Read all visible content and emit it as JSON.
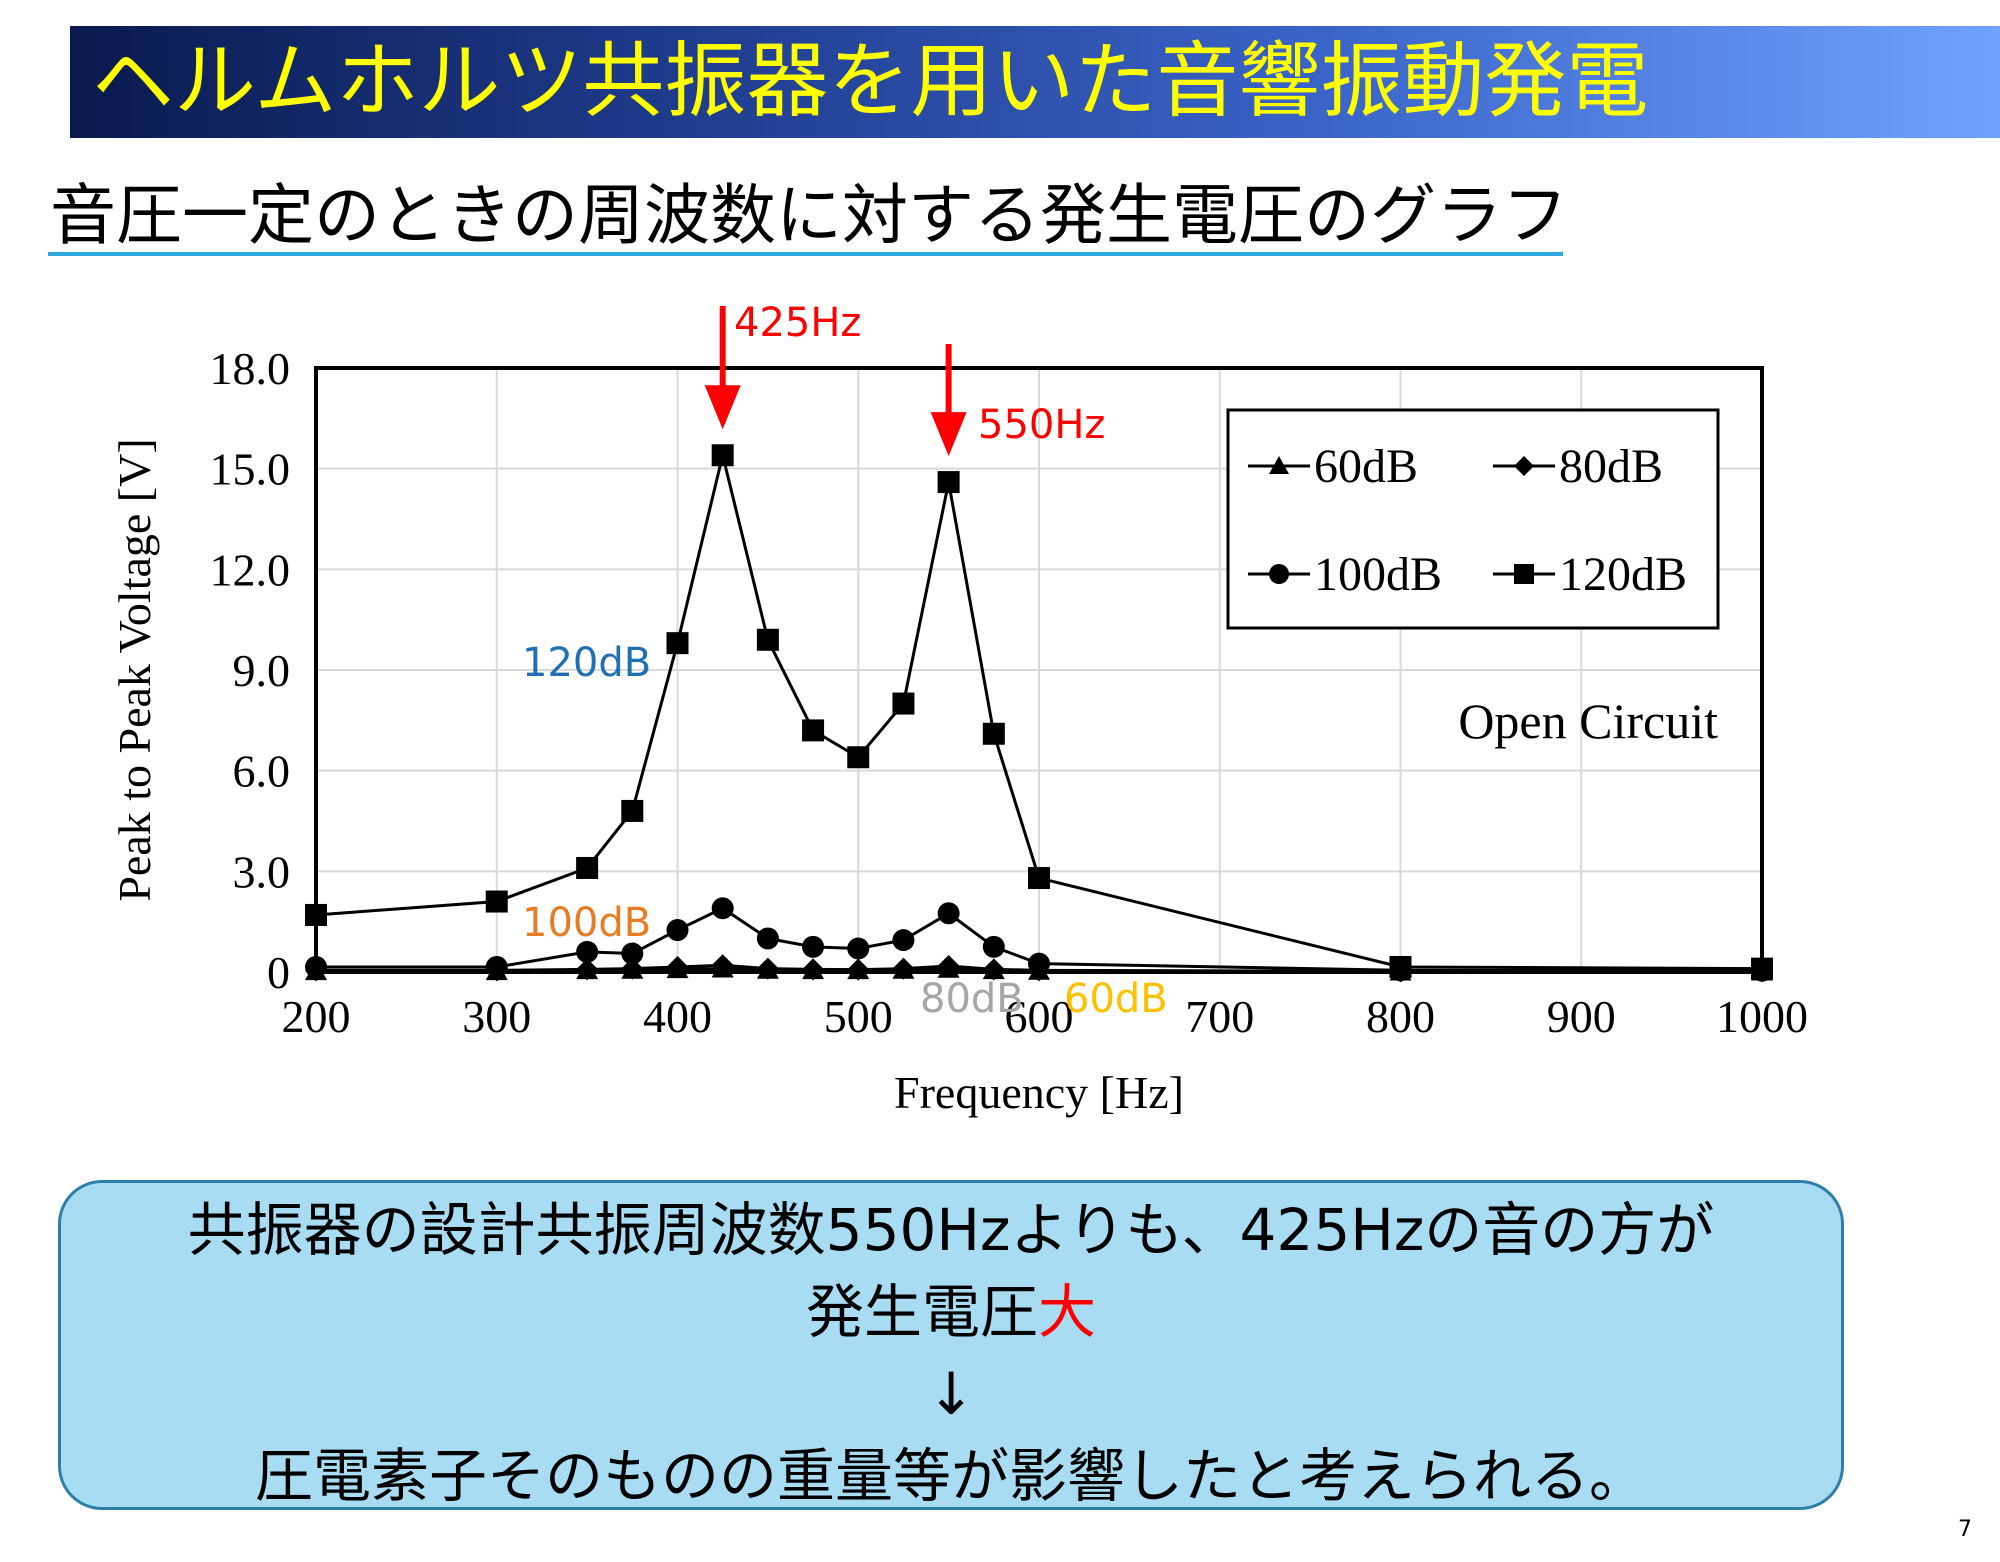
{
  "slide": {
    "title": "ヘルムホルツ共振器を用いた音響振動発電",
    "subtitle": "音圧一定のときの周波数に対する発生電圧のグラフ",
    "page_number": "7",
    "accent_color": "#ffff00",
    "title_bar_colors": [
      "#0a1a4e",
      "#6fa3ff"
    ]
  },
  "summary": {
    "line1": "共振器の設計共振周波数550Hzよりも、425Hzの音の方が",
    "line2_normal": "発生電圧",
    "line2_emph": "大",
    "arrow": "↓",
    "line3": "圧電素子そのものの重量等が影響したと考えられる。",
    "emph_color": "#ff0000",
    "box_color": "#a7dcf2"
  },
  "chart_data": {
    "type": "line",
    "xlabel": "Frequency [Hz]",
    "ylabel": "Peak to Peak Voltage [V]",
    "xlim": [
      200,
      1000
    ],
    "ylim": [
      0,
      18
    ],
    "xticks": [
      200,
      300,
      400,
      500,
      600,
      700,
      800,
      900,
      1000
    ],
    "xtick_labels": [
      "200",
      "300",
      "400",
      "500",
      "600",
      "700",
      "800",
      "900",
      "1000"
    ],
    "yticks": [
      0,
      3,
      6,
      9,
      12,
      15,
      18
    ],
    "ytick_labels": [
      "0",
      "3.0",
      "6.0",
      "9.0",
      "12.0",
      "15.0",
      "18.0"
    ],
    "grid": true,
    "legend_position": "top-right",
    "text_annotation": "Open Circuit",
    "series": [
      {
        "name": "60dB",
        "marker": "triangle",
        "x": [
          200,
          300,
          350,
          375,
          400,
          425,
          450,
          475,
          500,
          525,
          550,
          575,
          600,
          800,
          1000
        ],
        "y": [
          0.02,
          0.02,
          0.05,
          0.06,
          0.08,
          0.1,
          0.06,
          0.05,
          0.05,
          0.06,
          0.09,
          0.05,
          0.03,
          0.01,
          0.01
        ]
      },
      {
        "name": "80dB",
        "marker": "diamond",
        "x": [
          200,
          300,
          350,
          375,
          400,
          425,
          450,
          475,
          500,
          525,
          550,
          575,
          600,
          800,
          1000
        ],
        "y": [
          0.05,
          0.05,
          0.08,
          0.1,
          0.15,
          0.2,
          0.1,
          0.08,
          0.07,
          0.1,
          0.18,
          0.08,
          0.05,
          0.02,
          0.02
        ]
      },
      {
        "name": "100dB",
        "marker": "circle",
        "x": [
          200,
          300,
          350,
          375,
          400,
          425,
          450,
          475,
          500,
          525,
          550,
          575,
          600,
          800,
          1000
        ],
        "y": [
          0.15,
          0.15,
          0.6,
          0.55,
          1.25,
          1.9,
          1.0,
          0.75,
          0.7,
          0.95,
          1.75,
          0.75,
          0.25,
          0.05,
          0.04
        ]
      },
      {
        "name": "120dB",
        "marker": "square",
        "x": [
          200,
          300,
          350,
          375,
          400,
          425,
          450,
          475,
          500,
          525,
          550,
          575,
          600,
          800,
          1000
        ],
        "y": [
          1.7,
          2.1,
          3.1,
          4.8,
          9.8,
          15.4,
          9.9,
          7.2,
          6.4,
          8.0,
          14.6,
          7.1,
          2.8,
          0.15,
          0.1
        ]
      }
    ],
    "overlay_labels": [
      {
        "text": "120dB",
        "series": "120dB",
        "color": "#1f6fb5"
      },
      {
        "text": "100dB",
        "series": "100dB",
        "color": "#e87c24"
      },
      {
        "text": "80dB",
        "series": "80dB",
        "color": "#a6a6a6"
      },
      {
        "text": "60dB",
        "series": "60dB",
        "color": "#ffc000"
      }
    ],
    "peak_arrows": [
      {
        "text": "425Hz",
        "x": 425,
        "y": 15.4,
        "color": "#ff0000"
      },
      {
        "text": "550Hz",
        "x": 550,
        "y": 14.6,
        "color": "#ff0000"
      }
    ]
  }
}
